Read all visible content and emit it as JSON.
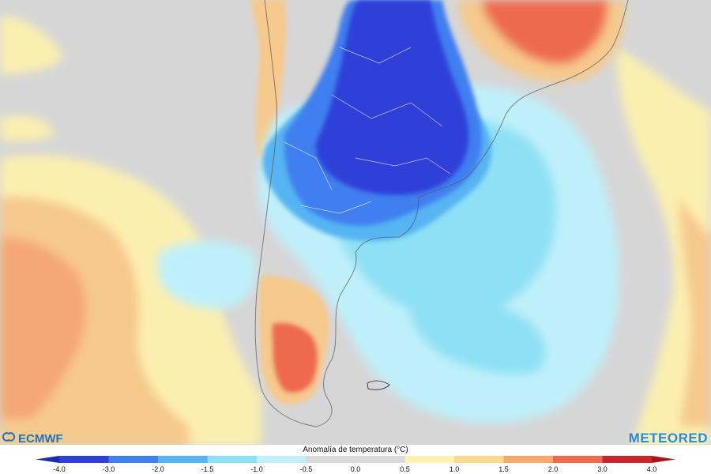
{
  "map": {
    "region": "South America",
    "colors": {
      "ocean_neutral": "#d7d7d7",
      "land_neutral": "#dcdcdc",
      "borders": "#ffffff"
    },
    "anomaly_areas": [
      {
        "name": "northern-argentina-paraguay",
        "anomaly_min": -4.0,
        "anomaly_max": -3.0,
        "color": "#2f3fe0"
      },
      {
        "name": "central-argentina",
        "anomaly_min": -3.0,
        "anomaly_max": -2.0,
        "color": "#3b6fe8"
      },
      {
        "name": "south-atlantic",
        "anomaly_min": -2.0,
        "anomaly_max": -1.0,
        "color": "#7fd3f0"
      },
      {
        "name": "southern-patagonia",
        "anomaly_min": 2.0,
        "anomaly_max": 3.0,
        "color": "#ee6a4f"
      },
      {
        "name": "southeast-brazil",
        "anomaly_min": 2.0,
        "anomaly_max": 3.0,
        "color": "#ee6a4f"
      },
      {
        "name": "south-pacific",
        "anomaly_min": 0.5,
        "anomaly_max": 2.0,
        "color": "#f6c98c"
      }
    ]
  },
  "logos": {
    "left": "ECMWF",
    "right": "METEORED"
  },
  "legend": {
    "title": "Anomalía de temperatura (°C)",
    "ticks": [
      "-4.0",
      "-3.0",
      "-2.0",
      "-1.5",
      "-1.0",
      "-0.5",
      "0.0",
      "0.5",
      "1.0",
      "1.5",
      "2.0",
      "3.0",
      "4.0"
    ],
    "colors": [
      "#2f3fd8",
      "#3f7ff0",
      "#56b4f2",
      "#8ee0f5",
      "#bff0fa",
      "#d9d9d9",
      "#d9d9d9",
      "#fff2b3",
      "#fcd98f",
      "#f8a86a",
      "#ee6a4f",
      "#c8262a"
    ]
  }
}
